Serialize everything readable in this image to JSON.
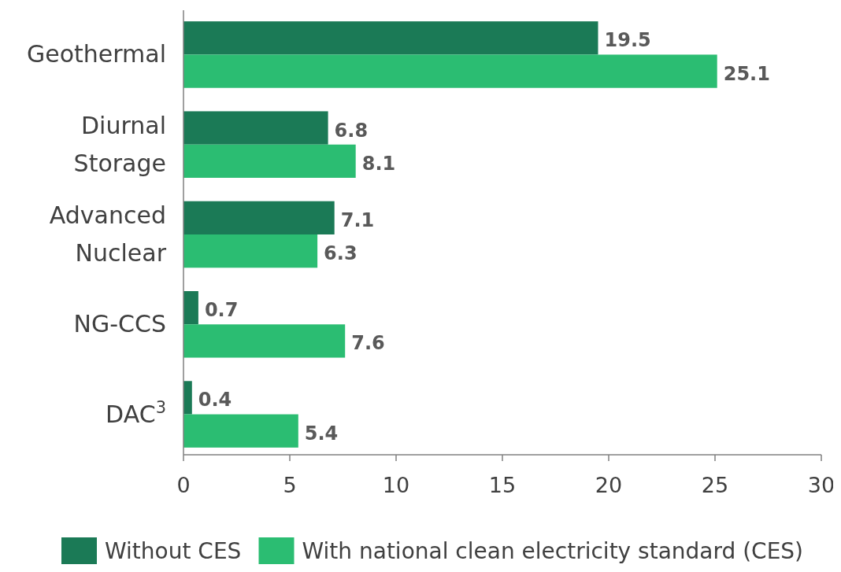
{
  "chart_data": {
    "type": "bar",
    "orientation": "horizontal",
    "categories": [
      "Geothermal",
      "Diurnal Storage",
      "Advanced Nuclear",
      "NG-CCS",
      "DAC$^{3}$"
    ],
    "series": [
      {
        "name": "Without CES",
        "color": "#1b7a56",
        "values": [
          19.5,
          6.8,
          7.1,
          0.7,
          0.4
        ]
      },
      {
        "name": "With national clean electricity standard (CES)",
        "color": "#2bbd72",
        "values": [
          25.1,
          8.1,
          6.3,
          7.6,
          5.4
        ]
      }
    ],
    "xlim": [
      0,
      30
    ],
    "xticks": [
      0,
      5,
      10,
      15,
      20,
      25,
      30
    ],
    "data_labels": true,
    "grid": false,
    "legend": "bottom"
  }
}
